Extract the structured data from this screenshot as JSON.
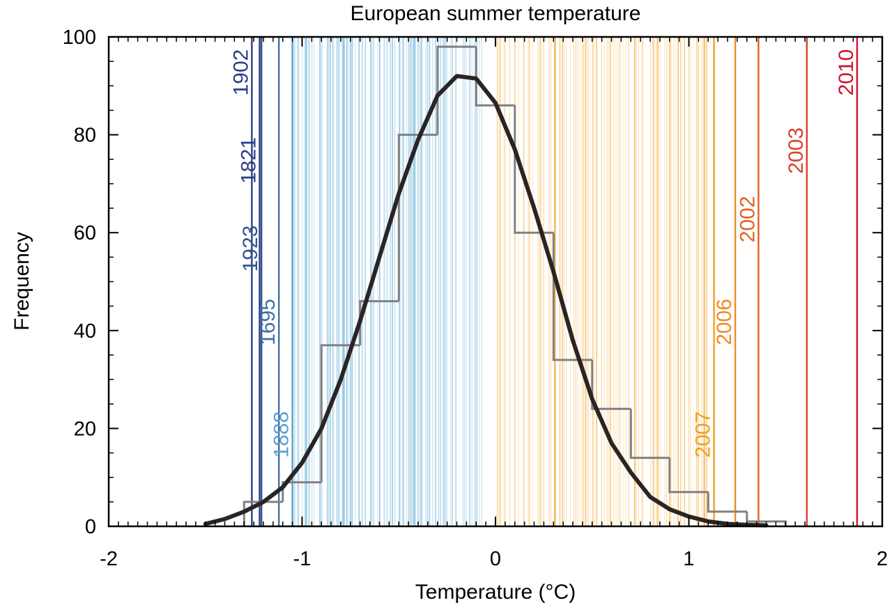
{
  "chart_data": {
    "type": "bar",
    "title": "European summer temperature",
    "xlabel": "Temperature (°C)",
    "ylabel": "Frequency",
    "xlim": [
      -2,
      2
    ],
    "ylim": [
      0,
      100
    ],
    "xticks": [
      "-2",
      "-1",
      "0",
      "1",
      "2"
    ],
    "yticks": [
      "0",
      "20",
      "40",
      "60",
      "80",
      "100"
    ],
    "histogram": {
      "bin_edges": [
        -1.3,
        -1.1,
        -0.9,
        -0.7,
        -0.5,
        -0.3,
        -0.1,
        0.1,
        0.3,
        0.5,
        0.7,
        0.9,
        1.1,
        1.3,
        1.5
      ],
      "values": [
        5,
        9,
        37,
        46,
        80,
        98,
        86,
        60,
        34,
        24,
        14,
        7,
        3,
        1
      ],
      "color": "#808080"
    },
    "fit_curve": {
      "x": [
        -1.5,
        -1.4,
        -1.3,
        -1.2,
        -1.1,
        -1.0,
        -0.9,
        -0.8,
        -0.7,
        -0.6,
        -0.5,
        -0.4,
        -0.3,
        -0.2,
        -0.1,
        0.0,
        0.1,
        0.2,
        0.3,
        0.4,
        0.5,
        0.6,
        0.7,
        0.8,
        0.9,
        1.0,
        1.1,
        1.2,
        1.3,
        1.4
      ],
      "y": [
        0.5,
        1.5,
        3,
        5,
        8,
        13,
        20,
        30,
        42,
        55,
        68,
        79,
        88,
        92,
        91.5,
        86.5,
        77,
        65,
        52,
        38,
        26,
        17,
        11,
        6,
        3.5,
        2,
        1,
        0.5,
        0.3,
        0.2
      ],
      "color": "#2a2424"
    },
    "highlighted_years": [
      {
        "year": "1902",
        "x": -1.26,
        "label_y": 88,
        "color": "#2b3d85"
      },
      {
        "year": "1821",
        "x": -1.22,
        "label_y": 70,
        "color": "#2b3d85"
      },
      {
        "year": "1923",
        "x": -1.21,
        "label_y": 52,
        "color": "#34558f"
      },
      {
        "year": "1695",
        "x": -1.12,
        "label_y": 37,
        "color": "#3f70a6"
      },
      {
        "year": "1888",
        "x": -1.05,
        "label_y": 14,
        "color": "#5aa0cd"
      },
      {
        "year": "2007",
        "x": 1.13,
        "label_y": 14,
        "color": "#f0a020"
      },
      {
        "year": "2006",
        "x": 1.24,
        "label_y": 37,
        "color": "#f08a20"
      },
      {
        "year": "2002",
        "x": 1.36,
        "label_y": 58,
        "color": "#e06020"
      },
      {
        "year": "2003",
        "x": 1.61,
        "label_y": 72,
        "color": "#d8402a"
      },
      {
        "year": "2010",
        "x": 1.87,
        "label_y": 88,
        "color": "#d01030"
      }
    ],
    "year_line_colors": {
      "cold": "#5aaad4",
      "warm": "#f2a427"
    },
    "grid": false,
    "legend": "none"
  }
}
